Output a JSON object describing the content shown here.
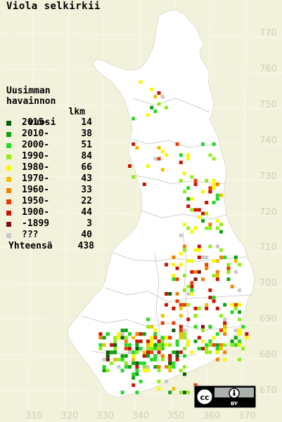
{
  "title": "Viola selkirkii",
  "legend": {
    "heading": [
      "Uusimman",
      "havainnon",
      "vuosi",
      "lkm"
    ],
    "items": [
      {
        "label": "2015-",
        "count": "14",
        "color": "#0c5c0c"
      },
      {
        "label": "2010-",
        "count": "38",
        "color": "#10a010"
      },
      {
        "label": "2000-",
        "count": "51",
        "color": "#28d828"
      },
      {
        "label": "1990-",
        "count": "84",
        "color": "#90ee18"
      },
      {
        "label": "1980-",
        "count": "66",
        "color": "#f8f800"
      },
      {
        "label": "1970-",
        "count": "43",
        "color": "#f0c000"
      },
      {
        "label": "1960-",
        "count": "33",
        "color": "#f08000"
      },
      {
        "label": "1950-",
        "count": "22",
        "color": "#e83c00"
      },
      {
        "label": "1900-",
        "count": "44",
        "color": "#c81400"
      },
      {
        "label": "-1899",
        "count": "3",
        "color": "#7a1010"
      },
      {
        "label": "???",
        "count": "40",
        "color": "#c8c8c8"
      }
    ],
    "total_label": "Yhteensä",
    "total": "438"
  },
  "grid": {
    "y_labels": [
      "770",
      "760",
      "750",
      "740",
      "730",
      "720",
      "710",
      "700",
      "690",
      "680",
      "670"
    ],
    "x_labels": [
      "310",
      "320",
      "330",
      "340",
      "350",
      "360",
      "370"
    ]
  },
  "license": {
    "cc": "cc",
    "by": "BY"
  }
}
